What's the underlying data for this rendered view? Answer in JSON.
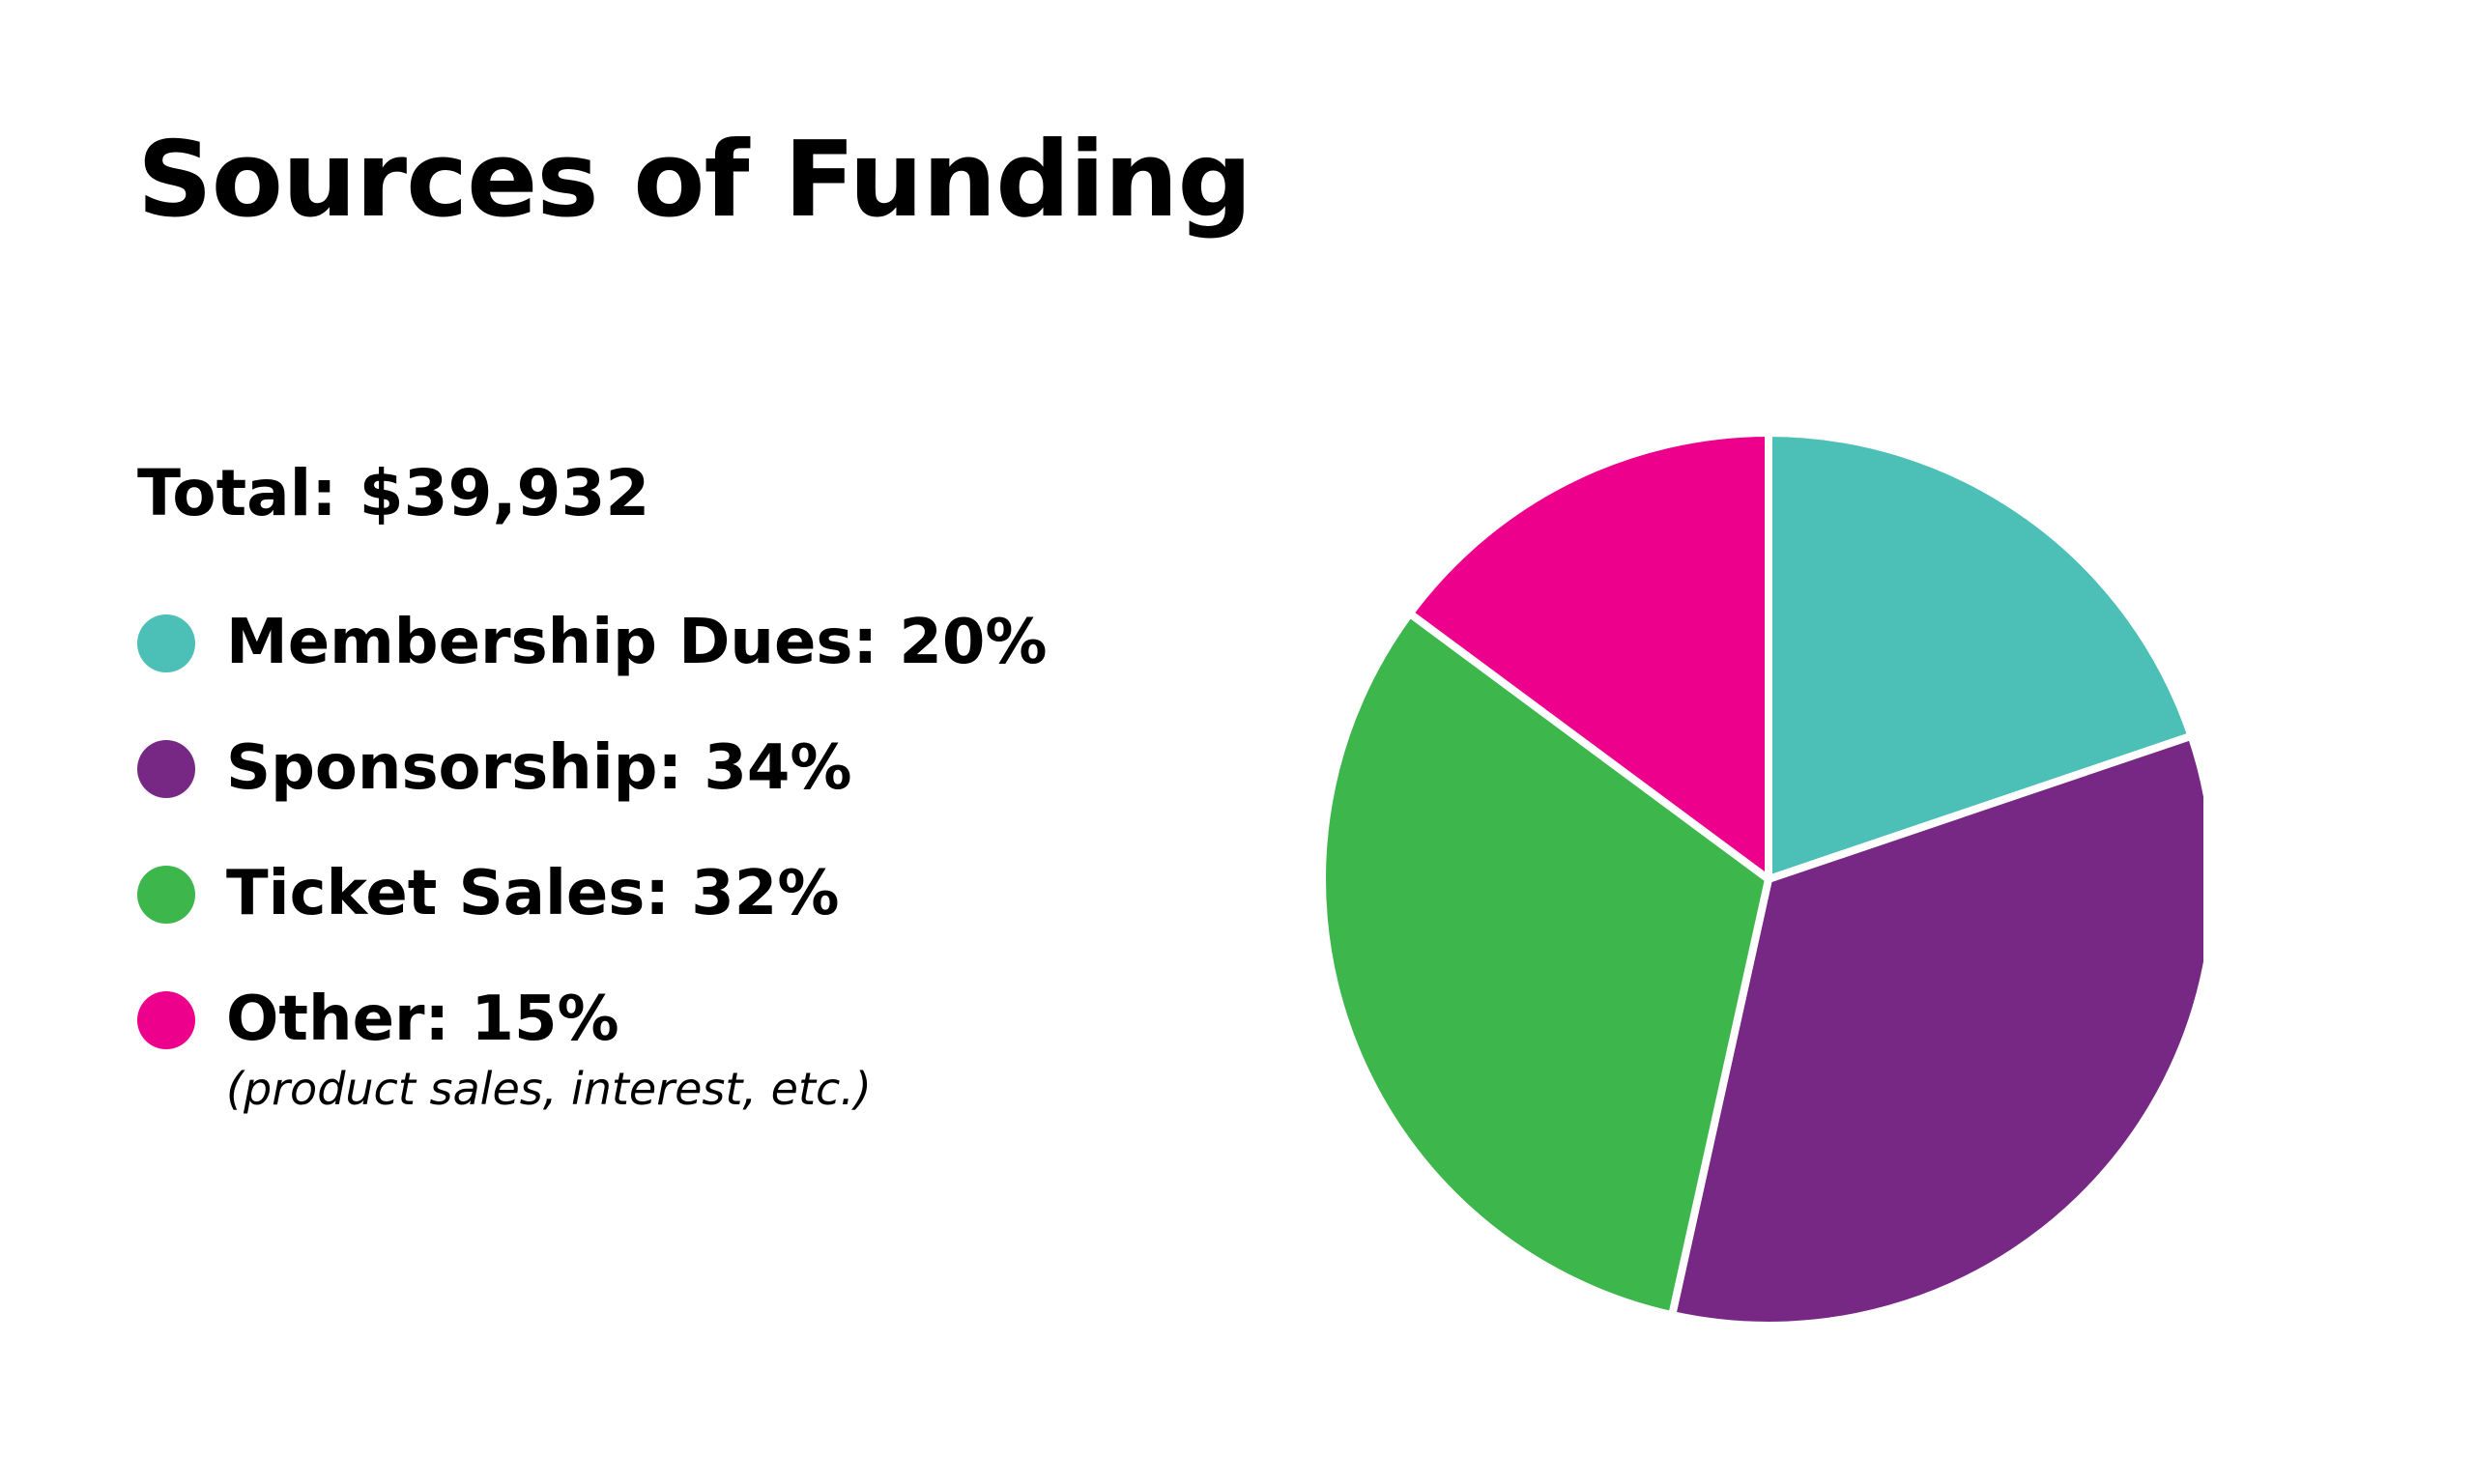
{
  "chart_data": {
    "type": "pie",
    "title": "Sources of Funding",
    "total_label": "Total: $39,932",
    "slices": [
      {
        "label": "Membership Dues",
        "legend": "Membership Dues: 20%",
        "value": 20,
        "color": "#4cbfb6"
      },
      {
        "label": "Sponsorship",
        "legend": "Sponsorship: 34%",
        "value": 34,
        "color": "#772885"
      },
      {
        "label": "Ticket Sales",
        "legend": "Ticket Sales: 32%",
        "value": 32,
        "color": "#3db64c"
      },
      {
        "label": "Other",
        "legend": "Other: 15%",
        "value": 15,
        "color": "#ed008c",
        "note": "(product sales, interest, etc.)"
      }
    ],
    "legend_position": "left",
    "start_angle": "top",
    "direction": "clockwise"
  }
}
